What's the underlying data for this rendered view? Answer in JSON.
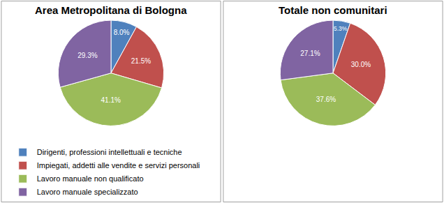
{
  "chart_data": [
    {
      "type": "pie",
      "title": "Area Metropolitana di Bologna",
      "categories": [
        "Dirigenti, professioni intellettuali e tecniche",
        "Impiegati, addetti alle vendite e servizi personali",
        "Lavoro manuale non qualificato",
        "Lavoro manuale specializzato"
      ],
      "values": [
        8.0,
        21.5,
        41.1,
        29.3
      ],
      "value_labels": [
        "8.0%",
        "21.5%",
        "41.1%",
        "29.3%"
      ],
      "colors": [
        "#4f81bd",
        "#c0504d",
        "#9bbb59",
        "#8064a2"
      ],
      "data_labels": true,
      "legend": "bottom"
    },
    {
      "type": "pie",
      "title": "Totale non comunitari",
      "categories": [
        "Dirigenti, professioni intellettuali e tecniche",
        "Impiegati, addetti alle vendite e servizi personali",
        "Lavoro manuale non qualificato",
        "Lavoro manuale specializzato"
      ],
      "values": [
        5.3,
        30.0,
        37.6,
        27.1
      ],
      "value_labels": [
        "5.3%",
        "30.0%",
        "37.6%",
        "27.1%"
      ],
      "colors": [
        "#4f81bd",
        "#c0504d",
        "#9bbb59",
        "#8064a2"
      ],
      "data_labels": true,
      "legend": "bottom"
    }
  ]
}
